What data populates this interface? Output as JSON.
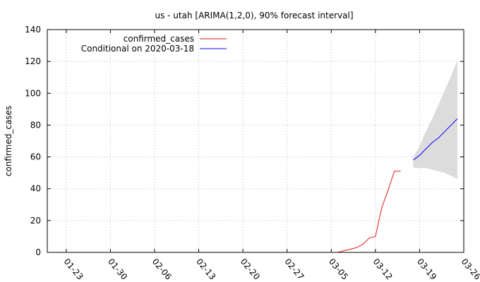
{
  "chart_data": {
    "type": "line",
    "title": "us - utah [ARIMA(1,2,0), 90% forecast interval]",
    "xlabel": "",
    "ylabel": "confirmed_cases",
    "x_ticks": [
      "01-23",
      "01-30",
      "02-06",
      "02-13",
      "02-20",
      "02-27",
      "03-05",
      "03-12",
      "03-19",
      "03-26"
    ],
    "xlim": [
      "2020-01-20",
      "2020-03-26"
    ],
    "ylim": [
      0,
      140
    ],
    "y_ticks": [
      0,
      20,
      40,
      60,
      80,
      100,
      120,
      140
    ],
    "grid": true,
    "legend_position": "top-left",
    "series": [
      {
        "name": "confirmed_cases",
        "color": "#e41a1c",
        "points": [
          [
            "2020-03-06",
            0
          ],
          [
            "2020-03-07",
            1
          ],
          [
            "2020-03-08",
            2
          ],
          [
            "2020-03-09",
            3
          ],
          [
            "2020-03-10",
            5
          ],
          [
            "2020-03-11",
            9
          ],
          [
            "2020-03-12",
            10
          ],
          [
            "2020-03-13",
            28
          ],
          [
            "2020-03-14",
            39
          ],
          [
            "2020-03-15",
            51
          ],
          [
            "2020-03-16",
            51
          ]
        ]
      },
      {
        "name": "Conditional on 2020-03-18",
        "color": "#0000ff",
        "points": [
          [
            "2020-03-18",
            58
          ],
          [
            "2020-03-19",
            61
          ],
          [
            "2020-03-20",
            65
          ],
          [
            "2020-03-21",
            69
          ],
          [
            "2020-03-22",
            72
          ],
          [
            "2020-03-23",
            76
          ],
          [
            "2020-03-24",
            80
          ],
          [
            "2020-03-25",
            84
          ]
        ]
      }
    ],
    "forecast_interval": {
      "color": "#dcdcdc",
      "upper": [
        [
          "2020-03-18",
          60
        ],
        [
          "2020-03-19",
          67
        ],
        [
          "2020-03-20",
          76
        ],
        [
          "2020-03-21",
          84
        ],
        [
          "2020-03-22",
          93
        ],
        [
          "2020-03-23",
          102
        ],
        [
          "2020-03-24",
          111
        ],
        [
          "2020-03-25",
          121
        ]
      ],
      "lower": [
        [
          "2020-03-18",
          53
        ],
        [
          "2020-03-19",
          53
        ],
        [
          "2020-03-20",
          53
        ],
        [
          "2020-03-21",
          52
        ],
        [
          "2020-03-22",
          51
        ],
        [
          "2020-03-23",
          50
        ],
        [
          "2020-03-24",
          48
        ],
        [
          "2020-03-25",
          46
        ]
      ]
    }
  }
}
